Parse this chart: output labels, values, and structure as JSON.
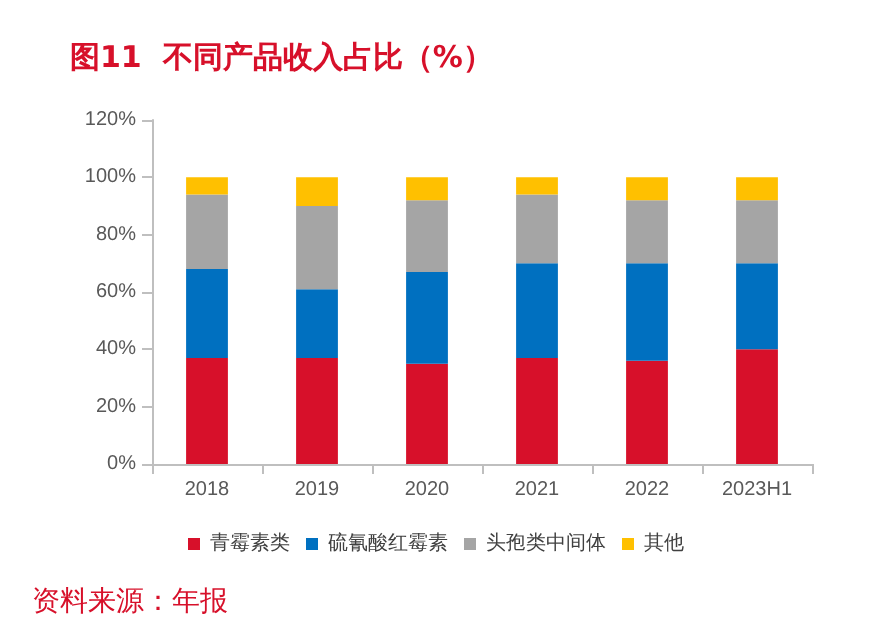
{
  "chart_data": {
    "type": "bar",
    "stacked": true,
    "title": "图11  不同产品收入占比（%）",
    "annotations": [
      "资料来源：年报"
    ],
    "categories": [
      "2018",
      "2019",
      "2020",
      "2021",
      "2022",
      "2023H1"
    ],
    "series": [
      {
        "name": "青霉素类",
        "color": "#d7102a",
        "values": [
          37,
          37,
          35,
          37,
          36,
          40
        ]
      },
      {
        "name": "硫氰酸红霉素",
        "color": "#0070c0",
        "values": [
          31,
          24,
          32,
          33,
          34,
          30
        ]
      },
      {
        "name": "头孢类中间体",
        "color": "#a5a5a5",
        "values": [
          26,
          29,
          25,
          24,
          22,
          22
        ]
      },
      {
        "name": "其他",
        "color": "#ffc000",
        "values": [
          6,
          10,
          8,
          6,
          8,
          8
        ]
      }
    ],
    "ylim": [
      0,
      120
    ],
    "yticks": [
      {
        "value": 0,
        "label": "0%"
      },
      {
        "value": 20,
        "label": "20%"
      },
      {
        "value": 40,
        "label": "40%"
      },
      {
        "value": 60,
        "label": "60%"
      },
      {
        "value": 80,
        "label": "80%"
      },
      {
        "value": 100,
        "label": "100%"
      },
      {
        "value": 120,
        "label": "120%"
      }
    ],
    "grid": false,
    "legend": "bottom"
  }
}
